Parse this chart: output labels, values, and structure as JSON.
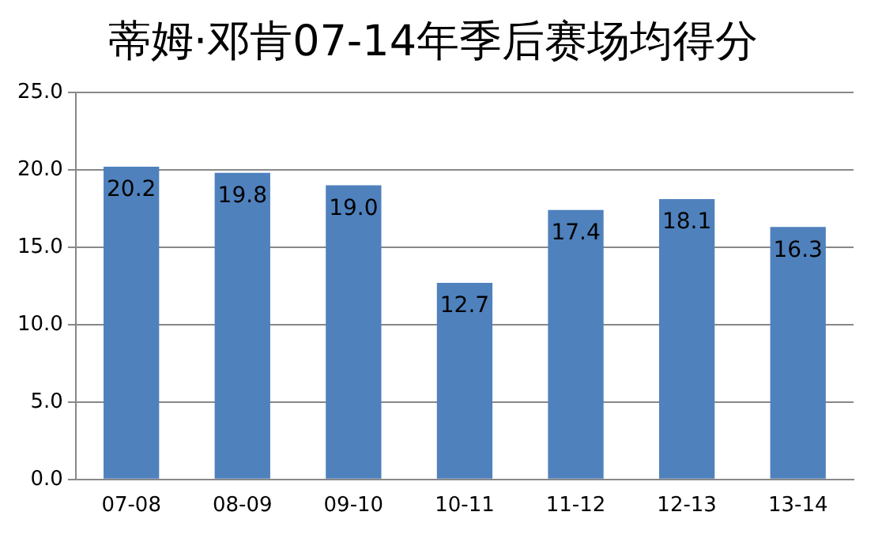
{
  "chart_data": {
    "type": "bar",
    "title": "蒂姆·邓肯07-14年季后赛场均得分",
    "categories": [
      "07-08",
      "08-09",
      "09-10",
      "10-11",
      "11-12",
      "12-13",
      "13-14"
    ],
    "values": [
      20.2,
      19.8,
      19.0,
      12.7,
      17.4,
      18.1,
      16.3
    ],
    "value_labels": [
      "20.2",
      "19.8",
      "19.0",
      "12.7",
      "17.4",
      "18.1",
      "16.3"
    ],
    "color": "#4f81bd",
    "ylim": [
      0,
      25
    ],
    "yticks": [
      {
        "value": 0,
        "label": "0.0"
      },
      {
        "value": 5,
        "label": "5.0"
      },
      {
        "value": 10,
        "label": "10.0"
      },
      {
        "value": 15,
        "label": "15.0"
      },
      {
        "value": 20,
        "label": "20.0"
      },
      {
        "value": 25,
        "label": "25.0"
      }
    ],
    "grid": "y",
    "legend": false
  }
}
